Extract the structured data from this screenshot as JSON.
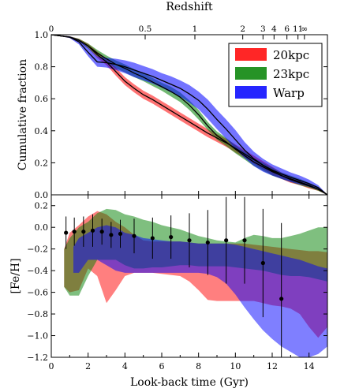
{
  "chart_data": [
    {
      "type": "line",
      "panel": "top",
      "ylabel": "Cumulative fraction",
      "top_axis_label": "Redshift",
      "top_ticks": [
        {
          "label": "0",
          "t": 0
        },
        {
          "label": "0.5",
          "t": 5.1
        },
        {
          "label": "1",
          "t": 7.8
        },
        {
          "label": "2",
          "t": 10.4
        },
        {
          "label": "3",
          "t": 11.5
        },
        {
          "label": "4",
          "t": 12.1
        },
        {
          "label": "6",
          "t": 12.8
        },
        {
          "label": "11",
          "t": 13.4
        },
        {
          "label": "∞",
          "t": 13.75
        }
      ],
      "xlim": [
        0,
        15
      ],
      "ylim": [
        0,
        1.0
      ],
      "yticks": [
        "0.0",
        "0.2",
        "0.4",
        "0.6",
        "0.8",
        "1.0"
      ],
      "legend": {
        "placement": "top-right",
        "entries": [
          {
            "name": "20kpc",
            "color": "#ff0000"
          },
          {
            "name": "23kpc",
            "color": "#008000"
          },
          {
            "name": "Warp",
            "color": "#0000ff"
          }
        ]
      },
      "series": [
        {
          "name": "20kpc",
          "color": "#ff0000",
          "x": [
            0,
            1,
            1.5,
            2,
            2.5,
            3,
            3.5,
            4,
            4.5,
            5,
            5.5,
            6,
            6.5,
            7,
            7.5,
            8,
            8.5,
            9,
            9.5,
            10,
            10.5,
            11,
            11.5,
            12,
            12.5,
            13,
            13.5,
            14,
            14.5,
            15
          ],
          "y": [
            1.0,
            0.985,
            0.965,
            0.93,
            0.875,
            0.83,
            0.77,
            0.71,
            0.665,
            0.625,
            0.595,
            0.56,
            0.525,
            0.49,
            0.455,
            0.42,
            0.385,
            0.355,
            0.325,
            0.29,
            0.255,
            0.22,
            0.185,
            0.15,
            0.12,
            0.095,
            0.075,
            0.055,
            0.035,
            0.0
          ],
          "upper": [
            1.0,
            0.99,
            0.975,
            0.945,
            0.895,
            0.85,
            0.795,
            0.735,
            0.69,
            0.65,
            0.62,
            0.585,
            0.55,
            0.515,
            0.48,
            0.445,
            0.41,
            0.38,
            0.35,
            0.315,
            0.28,
            0.245,
            0.21,
            0.175,
            0.14,
            0.115,
            0.09,
            0.07,
            0.045,
            0.0
          ],
          "lower": [
            1.0,
            0.98,
            0.955,
            0.915,
            0.855,
            0.81,
            0.745,
            0.685,
            0.64,
            0.6,
            0.57,
            0.535,
            0.5,
            0.465,
            0.43,
            0.395,
            0.36,
            0.33,
            0.3,
            0.265,
            0.23,
            0.195,
            0.16,
            0.125,
            0.1,
            0.075,
            0.06,
            0.04,
            0.025,
            0.0
          ]
        },
        {
          "name": "23kpc",
          "color": "#008000",
          "x": [
            0,
            1,
            1.5,
            2,
            2.5,
            3,
            3.5,
            4,
            4.5,
            5,
            5.5,
            6,
            6.5,
            7,
            7.5,
            8,
            8.5,
            9,
            9.5,
            10,
            10.5,
            11,
            11.5,
            12,
            12.5,
            13,
            13.5,
            14,
            14.5,
            15
          ],
          "y": [
            1.0,
            0.985,
            0.965,
            0.93,
            0.885,
            0.85,
            0.815,
            0.79,
            0.76,
            0.735,
            0.705,
            0.675,
            0.645,
            0.61,
            0.56,
            0.5,
            0.43,
            0.37,
            0.33,
            0.285,
            0.245,
            0.205,
            0.175,
            0.145,
            0.12,
            0.1,
            0.08,
            0.06,
            0.035,
            0.0
          ],
          "upper": [
            1.0,
            0.99,
            0.975,
            0.945,
            0.905,
            0.87,
            0.84,
            0.815,
            0.785,
            0.76,
            0.73,
            0.7,
            0.675,
            0.64,
            0.59,
            0.53,
            0.455,
            0.395,
            0.355,
            0.31,
            0.27,
            0.23,
            0.2,
            0.17,
            0.14,
            0.12,
            0.1,
            0.075,
            0.05,
            0.0
          ],
          "lower": [
            1.0,
            0.98,
            0.955,
            0.915,
            0.865,
            0.83,
            0.79,
            0.765,
            0.735,
            0.71,
            0.68,
            0.65,
            0.615,
            0.58,
            0.53,
            0.47,
            0.405,
            0.345,
            0.305,
            0.26,
            0.22,
            0.18,
            0.15,
            0.12,
            0.1,
            0.08,
            0.06,
            0.045,
            0.025,
            0.0
          ]
        },
        {
          "name": "Warp",
          "color": "#0000ff",
          "x": [
            0,
            1,
            1.5,
            2,
            2.5,
            3,
            3.5,
            4,
            4.5,
            5,
            5.5,
            6,
            6.5,
            7,
            7.5,
            8,
            8.5,
            9,
            9.5,
            10,
            10.5,
            11,
            11.5,
            12,
            12.5,
            13,
            13.5,
            14,
            14.5,
            15
          ],
          "y": [
            1.0,
            0.985,
            0.955,
            0.89,
            0.83,
            0.825,
            0.815,
            0.8,
            0.78,
            0.76,
            0.74,
            0.715,
            0.69,
            0.665,
            0.63,
            0.59,
            0.535,
            0.47,
            0.41,
            0.345,
            0.28,
            0.225,
            0.185,
            0.155,
            0.13,
            0.11,
            0.09,
            0.07,
            0.045,
            0.0
          ],
          "upper": [
            1.0,
            0.99,
            0.97,
            0.92,
            0.865,
            0.855,
            0.85,
            0.84,
            0.825,
            0.805,
            0.785,
            0.76,
            0.74,
            0.715,
            0.685,
            0.645,
            0.595,
            0.53,
            0.47,
            0.405,
            0.33,
            0.27,
            0.225,
            0.19,
            0.165,
            0.14,
            0.12,
            0.095,
            0.06,
            0.0
          ],
          "lower": [
            1.0,
            0.98,
            0.94,
            0.865,
            0.8,
            0.795,
            0.78,
            0.76,
            0.735,
            0.715,
            0.695,
            0.67,
            0.64,
            0.615,
            0.575,
            0.535,
            0.475,
            0.41,
            0.35,
            0.285,
            0.23,
            0.18,
            0.145,
            0.12,
            0.1,
            0.08,
            0.065,
            0.05,
            0.03,
            0.0
          ]
        }
      ]
    },
    {
      "type": "area",
      "panel": "bottom",
      "xlabel": "Look-back time (Gyr)",
      "ylabel": "[Fe/H]",
      "xlim": [
        0,
        15
      ],
      "ylim": [
        -1.2,
        0.3
      ],
      "xticks": [
        "0",
        "2",
        "4",
        "6",
        "8",
        "10",
        "12",
        "14"
      ],
      "yticks": [
        "0.2",
        "0.0",
        "−0.2",
        "−0.4",
        "−0.6",
        "−0.8",
        "−1.0",
        "−1.2"
      ],
      "bands": [
        {
          "name": "20kpc",
          "color": "#ff0000",
          "x": [
            0.7,
            1.0,
            1.5,
            2.0,
            2.5,
            3.0,
            3.5,
            4.0,
            4.5,
            5.0,
            5.5,
            6.0,
            6.5,
            7.0,
            7.5,
            8.0,
            8.5,
            9.0,
            9.5,
            10.0,
            10.5,
            11.0,
            11.5,
            12.0,
            12.5,
            13.0,
            13.5,
            14.0,
            14.5,
            15.0
          ],
          "upper": [
            -0.2,
            -0.05,
            0.02,
            0.1,
            0.15,
            0.12,
            0.05,
            0.0,
            -0.07,
            -0.12,
            -0.13,
            -0.13,
            -0.13,
            -0.13,
            -0.14,
            -0.15,
            -0.15,
            -0.15,
            -0.15,
            -0.15,
            -0.15,
            -0.16,
            -0.17,
            -0.18,
            -0.19,
            -0.2,
            -0.21,
            -0.22,
            -0.22,
            -0.23
          ],
          "lower": [
            -0.55,
            -0.6,
            -0.58,
            -0.38,
            -0.45,
            -0.7,
            -0.58,
            -0.45,
            -0.42,
            -0.42,
            -0.42,
            -0.43,
            -0.44,
            -0.45,
            -0.5,
            -0.58,
            -0.67,
            -0.68,
            -0.68,
            -0.68,
            -0.68,
            -0.68,
            -0.7,
            -0.72,
            -0.73,
            -0.75,
            -0.8,
            -0.92,
            -1.02,
            -0.92
          ]
        },
        {
          "name": "23kpc",
          "color": "#008000",
          "x": [
            0.7,
            1.0,
            1.5,
            2.0,
            2.5,
            3.0,
            3.5,
            4.0,
            4.5,
            5.0,
            5.5,
            6.0,
            6.5,
            7.0,
            7.5,
            8.0,
            8.5,
            9.0,
            9.5,
            10.0,
            10.5,
            11.0,
            11.5,
            12.0,
            12.5,
            13.0,
            13.5,
            14.0,
            14.5,
            15.0
          ],
          "upper": [
            -0.2,
            -0.1,
            0.0,
            0.05,
            0.13,
            0.17,
            0.16,
            0.12,
            0.1,
            0.07,
            0.05,
            0.02,
            0.0,
            -0.02,
            -0.05,
            -0.08,
            -0.1,
            -0.12,
            -0.13,
            -0.14,
            -0.1,
            -0.07,
            -0.08,
            -0.1,
            -0.1,
            -0.08,
            -0.06,
            -0.03,
            0.0,
            0.0
          ],
          "lower": [
            -0.55,
            -0.63,
            -0.63,
            -0.45,
            -0.3,
            -0.3,
            -0.3,
            -0.35,
            -0.38,
            -0.38,
            -0.37,
            -0.37,
            -0.36,
            -0.35,
            -0.35,
            -0.36,
            -0.36,
            -0.36,
            -0.36,
            -0.37,
            -0.38,
            -0.39,
            -0.4,
            -0.42,
            -0.44,
            -0.45,
            -0.45,
            -0.46,
            -0.48,
            -0.5
          ]
        },
        {
          "name": "Warp",
          "color": "#0000ff",
          "x": [
            1.2,
            1.5,
            2.0,
            2.5,
            3.0,
            3.5,
            4.0,
            4.5,
            5.0,
            5.5,
            6.0,
            6.5,
            7.0,
            7.5,
            8.0,
            8.5,
            9.0,
            9.5,
            10.0,
            10.5,
            11.0,
            11.5,
            12.0,
            12.5,
            13.0,
            13.5,
            14.0,
            14.5,
            15.0
          ],
          "upper": [
            -0.18,
            -0.1,
            -0.05,
            0.0,
            0.02,
            0.0,
            -0.05,
            -0.07,
            -0.1,
            -0.11,
            -0.12,
            -0.13,
            -0.13,
            -0.14,
            -0.15,
            -0.15,
            -0.15,
            -0.15,
            -0.16,
            -0.18,
            -0.2,
            -0.22,
            -0.24,
            -0.26,
            -0.28,
            -0.3,
            -0.33,
            -0.36,
            -0.38
          ],
          "lower": [
            -0.42,
            -0.42,
            -0.3,
            -0.3,
            -0.35,
            -0.4,
            -0.42,
            -0.42,
            -0.42,
            -0.42,
            -0.42,
            -0.42,
            -0.42,
            -0.42,
            -0.42,
            -0.43,
            -0.46,
            -0.52,
            -0.62,
            -0.74,
            -0.85,
            -0.95,
            -1.03,
            -1.1,
            -1.15,
            -1.2,
            -1.2,
            -1.17,
            -1.1
          ]
        }
      ],
      "points": {
        "color": "#000000",
        "x": [
          0.8,
          1.25,
          1.75,
          2.25,
          2.75,
          3.25,
          3.75,
          4.5,
          5.5,
          6.5,
          7.5,
          8.5,
          9.5,
          10.5,
          11.5,
          12.5
        ],
        "y": [
          -0.05,
          -0.04,
          -0.04,
          -0.03,
          -0.04,
          -0.07,
          -0.06,
          -0.08,
          -0.1,
          -0.09,
          -0.12,
          -0.14,
          -0.12,
          -0.12,
          -0.33,
          -0.66
        ],
        "yerr": [
          0.15,
          0.13,
          0.14,
          0.15,
          0.12,
          0.12,
          0.13,
          0.16,
          0.19,
          0.2,
          0.25,
          0.3,
          0.4,
          0.4,
          0.5,
          0.7
        ]
      }
    }
  ]
}
